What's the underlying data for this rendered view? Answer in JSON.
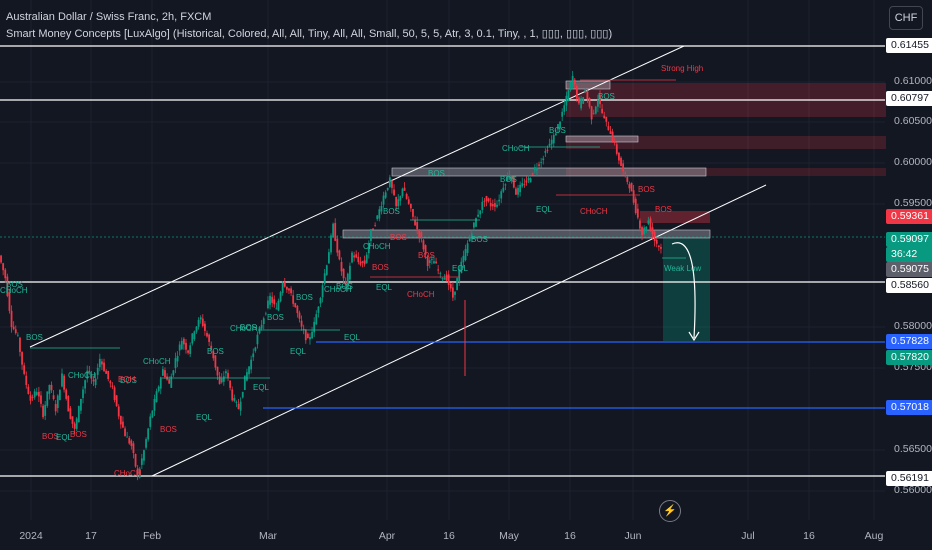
{
  "header": {
    "title": "Australian Dollar / Swiss Franc, 2h, FXCM",
    "indicator": "Smart Money Concepts [LuxAlgo] (Historical, Colored, All, All, Tiny, All, All, Small, 50, 5, 5, Atr, 3, 0.1, Tiny, , 1, ▯▯▯, ▯▯▯, ▯▯▯)"
  },
  "currency_button": "CHF",
  "colors": {
    "background": "#131722",
    "up": "#089981",
    "down": "#f23645",
    "smc_bull": "#20b89a",
    "smc_bear": "#f23645",
    "level_line_blue": "#2962ff",
    "level_line_white": "#ffffff"
  },
  "chart_data": {
    "type": "candlestick",
    "symbol": "AUDCHF",
    "timeframe": "2h",
    "y_ticks": [
      "0.61000",
      "0.60500",
      "0.60000",
      "0.59500",
      "0.58000",
      "0.57500",
      "0.56500",
      "0.56000"
    ],
    "x_ticks": [
      "2024",
      "17",
      "Feb",
      "Mar",
      "Apr",
      "16",
      "May",
      "16",
      "Jun",
      "Jul",
      "16",
      "Aug"
    ],
    "ylim": [
      0.56,
      0.616
    ],
    "price_labels": [
      {
        "value": "0.61455",
        "style": "w"
      },
      {
        "value": "0.60797",
        "style": "w"
      },
      {
        "value": "0.59361",
        "style": "r"
      },
      {
        "value": "0.59097",
        "style": "g",
        "sub": "36:42"
      },
      {
        "value": "0.59075",
        "style": "gy"
      },
      {
        "value": "0.58560",
        "style": "w"
      },
      {
        "value": "0.57828",
        "style": "b"
      },
      {
        "value": "0.57820",
        "style": "g"
      },
      {
        "value": "0.57018",
        "style": "b"
      },
      {
        "value": "0.56191",
        "style": "w"
      }
    ],
    "horizontal_levels": [
      {
        "price": 0.61455,
        "color": "white"
      },
      {
        "price": 0.60797,
        "color": "white"
      },
      {
        "price": 0.5856,
        "color": "white"
      },
      {
        "price": 0.57828,
        "color": "blue"
      },
      {
        "price": 0.57018,
        "color": "blue"
      },
      {
        "price": 0.56191,
        "color": "white"
      }
    ],
    "price_path": [
      [
        0,
        0.5889
      ],
      [
        1,
        0.5862
      ],
      [
        2,
        0.5805
      ],
      [
        3,
        0.5788
      ],
      [
        4,
        0.5741
      ],
      [
        5,
        0.5712
      ],
      [
        6,
        0.5724
      ],
      [
        7,
        0.5695
      ],
      [
        8,
        0.5731
      ],
      [
        9,
        0.5701
      ],
      [
        10,
        0.5742
      ],
      [
        11,
        0.5701
      ],
      [
        12,
        0.5675
      ],
      [
        13,
        0.5715
      ],
      [
        14,
        0.5748
      ],
      [
        15,
        0.5731
      ],
      [
        16,
        0.5763
      ],
      [
        17,
        0.5744
      ],
      [
        18,
        0.5725
      ],
      [
        19,
        0.5694
      ],
      [
        20,
        0.567
      ],
      [
        21,
        0.5656
      ],
      [
        22,
        0.5619
      ],
      [
        23,
        0.565
      ],
      [
        24,
        0.569
      ],
      [
        25,
        0.572
      ],
      [
        26,
        0.5749
      ],
      [
        27,
        0.5731
      ],
      [
        28,
        0.5762
      ],
      [
        29,
        0.5786
      ],
      [
        30,
        0.5772
      ],
      [
        31,
        0.5799
      ],
      [
        32,
        0.5812
      ],
      [
        33,
        0.579
      ],
      [
        34,
        0.5765
      ],
      [
        35,
        0.573
      ],
      [
        36,
        0.5748
      ],
      [
        37,
        0.5715
      ],
      [
        38,
        0.5702
      ],
      [
        39,
        0.5738
      ],
      [
        40,
        0.5761
      ],
      [
        41,
        0.579
      ],
      [
        42,
        0.5814
      ],
      [
        43,
        0.5838
      ],
      [
        44,
        0.5822
      ],
      [
        45,
        0.5858
      ],
      [
        46,
        0.5846
      ],
      [
        47,
        0.5826
      ],
      [
        48,
        0.58
      ],
      [
        49,
        0.5784
      ],
      [
        50,
        0.5805
      ],
      [
        51,
        0.5841
      ],
      [
        52,
        0.588
      ],
      [
        53,
        0.5925
      ],
      [
        54,
        0.5881
      ],
      [
        55,
        0.5849
      ],
      [
        56,
        0.5892
      ],
      [
        57,
        0.5881
      ],
      [
        58,
        0.5879
      ],
      [
        59,
        0.5918
      ],
      [
        60,
        0.5936
      ],
      [
        61,
        0.5962
      ],
      [
        62,
        0.5981
      ],
      [
        63,
        0.5948
      ],
      [
        64,
        0.5972
      ],
      [
        65,
        0.5951
      ],
      [
        66,
        0.5928
      ],
      [
        67,
        0.5908
      ],
      [
        68,
        0.588
      ],
      [
        69,
        0.5882
      ],
      [
        70,
        0.5864
      ],
      [
        71,
        0.5862
      ],
      [
        72,
        0.5838
      ],
      [
        73,
        0.587
      ],
      [
        74,
        0.5895
      ],
      [
        75,
        0.592
      ],
      [
        76,
        0.5941
      ],
      [
        77,
        0.5958
      ],
      [
        78,
        0.5951
      ],
      [
        79,
        0.5952
      ],
      [
        80,
        0.5975
      ],
      [
        81,
        0.599
      ],
      [
        82,
        0.5966
      ],
      [
        83,
        0.5975
      ],
      [
        84,
        0.5982
      ],
      [
        85,
        0.5996
      ],
      [
        86,
        0.6006
      ],
      [
        87,
        0.6021
      ],
      [
        88,
        0.6034
      ],
      [
        89,
        0.6055
      ],
      [
        90,
        0.6081
      ],
      [
        91,
        0.6108
      ],
      [
        92,
        0.6072
      ],
      [
        93,
        0.6092
      ],
      [
        94,
        0.6059
      ],
      [
        95,
        0.6081
      ],
      [
        96,
        0.6055
      ],
      [
        97,
        0.604
      ],
      [
        98,
        0.6015
      ],
      [
        99,
        0.5991
      ],
      [
        100,
        0.5975
      ],
      [
        101,
        0.5945
      ],
      [
        102,
        0.5916
      ],
      [
        103,
        0.5932
      ],
      [
        104,
        0.5908
      ],
      [
        105,
        0.5897
      ]
    ],
    "annotations": {
      "bos": [
        "BOS",
        "BOS",
        "BOS",
        "BOS",
        "BOS",
        "BOS",
        "BOS",
        "BOS",
        "BOS",
        "BOS",
        "BOS",
        "BOS",
        "BOS",
        "BOS",
        "BOS",
        "BOS",
        "BOS",
        "BOS",
        "BOS",
        "BOS",
        "BOS",
        "BOS"
      ],
      "choch": [
        "CHoCH",
        "CHoCH",
        "CHoCH",
        "CHoCH",
        "CHoCH",
        "CHoCH",
        "CHoCH",
        "CHoCH",
        "CHoCH",
        "CHoCH"
      ],
      "eq": [
        "EQH",
        "EQL",
        "EQL",
        "EQL",
        "EQL",
        "EQL",
        "EQL",
        "EQL",
        "EQL"
      ],
      "strong_high": "Strong High",
      "weak_low": "Weak Low"
    },
    "grid": true,
    "legend": "none"
  },
  "icons": [
    "lightning-icon"
  ]
}
